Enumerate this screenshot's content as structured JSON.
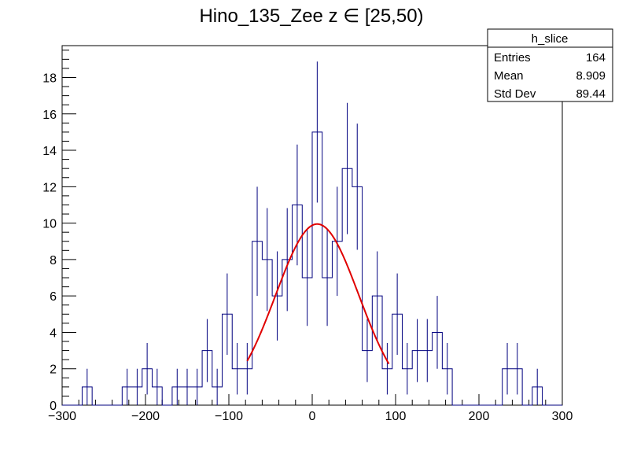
{
  "chart_data": {
    "type": "histogram",
    "title": "Hino_135_Zee z  ∈ [25,50)",
    "xlim": [
      -300,
      300
    ],
    "ylim": [
      0,
      19.75
    ],
    "x_ticks": [
      -300,
      -200,
      -100,
      0,
      100,
      200,
      300
    ],
    "y_ticks": [
      0,
      2,
      4,
      6,
      8,
      10,
      12,
      14,
      16,
      18
    ],
    "bin_width": 12,
    "bin_edges_start": -300,
    "counts": [
      0,
      0,
      1,
      0,
      0,
      0,
      1,
      1,
      2,
      1,
      0,
      1,
      1,
      1,
      3,
      1,
      5,
      2,
      2,
      9,
      8,
      6,
      8,
      11,
      7,
      15,
      7,
      9,
      13,
      12,
      3,
      6,
      2,
      5,
      2,
      3,
      3,
      4,
      2,
      0,
      0,
      0,
      0,
      0,
      2,
      2,
      0,
      1,
      0,
      0
    ],
    "fit": {
      "function": "gaussian",
      "constant": 9.95,
      "mean": 6.0,
      "sigma": 50.0,
      "x_range": [
        -78,
        92
      ],
      "color": "#e00000"
    },
    "histogram_color": "#00007f",
    "stats_box": {
      "name": "h_slice",
      "rows": [
        {
          "label": "Entries",
          "value": "164"
        },
        {
          "label": "Mean",
          "value": "8.909"
        },
        {
          "label": "Std Dev",
          "value": "89.44"
        }
      ]
    }
  }
}
